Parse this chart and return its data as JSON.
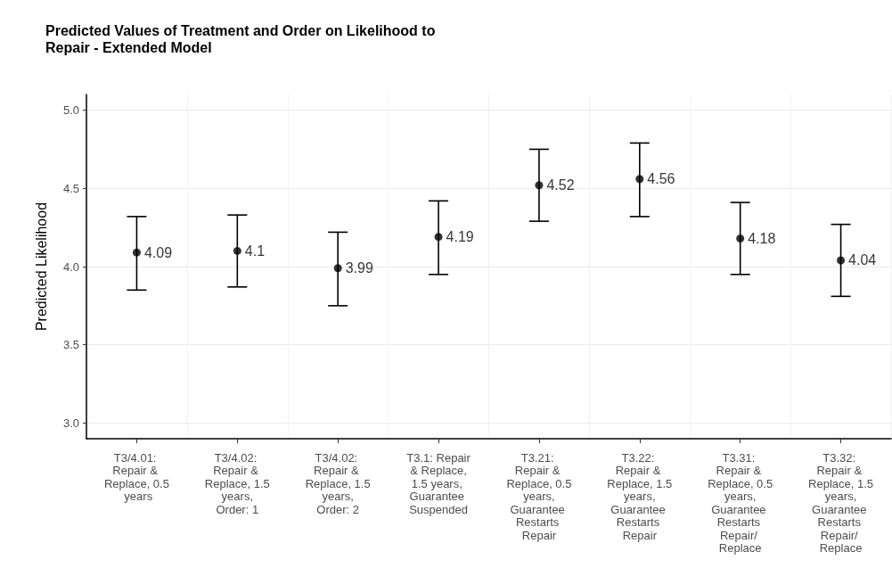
{
  "chart_data": {
    "type": "scatter",
    "title": "Predicted Values of Treatment and Order on Likelihood to Repair - Extended Model",
    "ylabel": "Predicted Likelihood",
    "categories": [
      "T3/4.01: Repair & Replace, 0.5 years",
      "T3/4.02: Repair & Replace, 1.5 years, Order: 1",
      "T3/4.02: Repair & Replace, 1.5 years, Order: 2",
      "T3.1: Repair & Replace, 1.5 years, Guarantee Suspended",
      "T3.21: Repair & Replace, 0.5 years, Guarantee Restarts Repair",
      "T3.22: Repair & Replace, 1.5 years, Guarantee Restarts Repair",
      "T3.31: Repair & Replace, 0.5 years, Guarantee Restarts Repair/ Replace",
      "T3.32: Repair & Replace, 1.5 years, Guarantee Restarts Repair/ Replace"
    ],
    "values": [
      4.09,
      4.1,
      3.99,
      4.19,
      4.52,
      4.56,
      4.18,
      4.04
    ],
    "errors": [
      [
        3.85,
        4.32
      ],
      [
        3.87,
        4.33
      ],
      [
        3.75,
        4.22
      ],
      [
        3.95,
        4.42
      ],
      [
        4.29,
        4.75
      ],
      [
        4.32,
        4.79
      ],
      [
        3.95,
        4.41
      ],
      [
        3.81,
        4.27
      ]
    ],
    "color": "#000000",
    "marker": "circle",
    "data_labels": true,
    "grid": true,
    "ylim": [
      2.9,
      5.1
    ],
    "yticks": [
      {
        "value": 3,
        "label": "3.0"
      },
      {
        "value": 3.5,
        "label": "3.5"
      },
      {
        "value": 4,
        "label": "4.0"
      },
      {
        "value": 4.5,
        "label": "4.5"
      },
      {
        "value": 5,
        "label": "5.0"
      }
    ]
  }
}
